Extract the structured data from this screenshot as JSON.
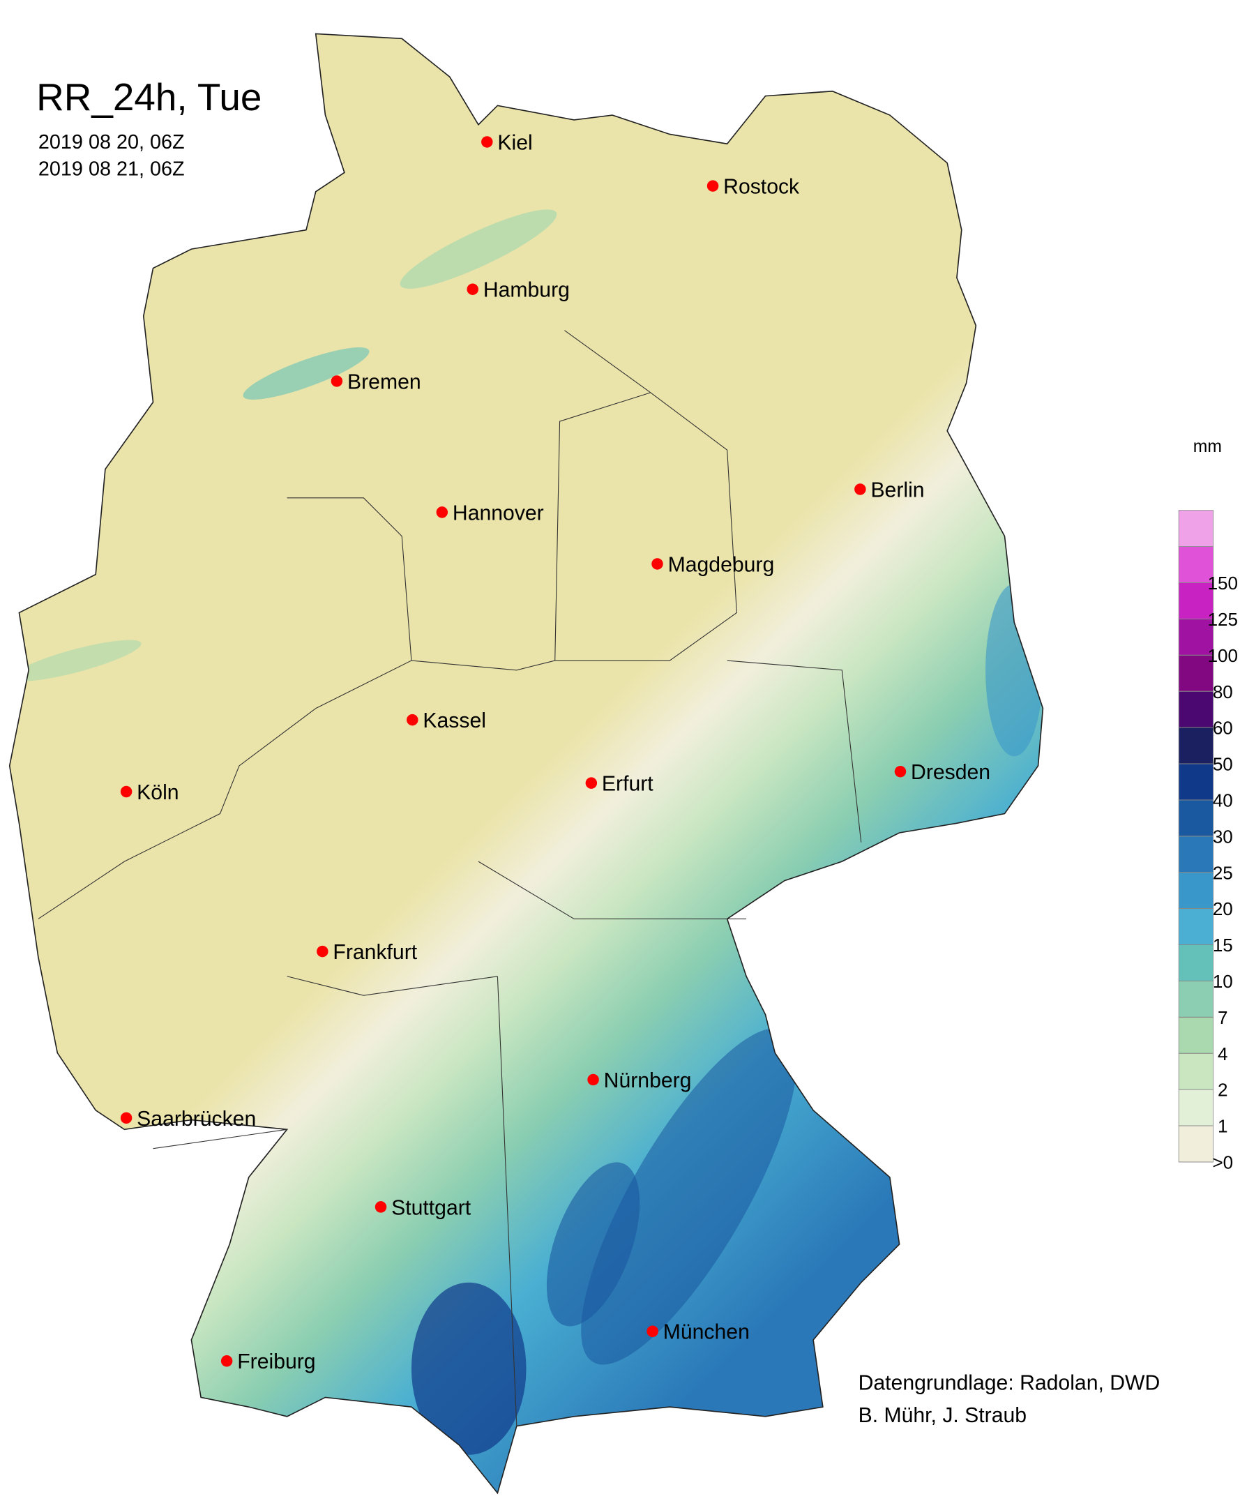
{
  "title": "RR_24h, Tue",
  "period": [
    "2019 08 20, 06Z",
    "2019 08 21, 06Z"
  ],
  "cities": [
    "Kiel",
    "Rostock",
    "Hamburg",
    "Bremen",
    "Berlin",
    "Hannover",
    "Magdeburg",
    "Kassel",
    "Köln",
    "Dresden",
    "Erfurt",
    "Frankfurt",
    "Nürnberg",
    "Saarbrücken",
    "Stuttgart",
    "München",
    "Freiburg"
  ],
  "legend": {
    "unit": "mm",
    "ticks": [
      {
        "value": 0,
        "label": ">0"
      },
      1,
      2,
      4,
      7,
      10,
      15,
      20,
      25,
      30,
      40,
      50,
      60,
      80,
      100,
      125,
      150
    ],
    "colors": [
      "#f1efdc",
      "#e1f0d6",
      "#c9e6c1",
      "#aad9af",
      "#8bceb1",
      "#63c1b9",
      "#4aafd2",
      "#3a97c9",
      "#2a78b8",
      "#1a58a0",
      "#10398a",
      "#1b2060",
      "#4a0870",
      "#810880",
      "#a012a2",
      "#c822c2",
      "#e052d8",
      "#f0a2e8"
    ]
  },
  "credits": [
    "Datengrundlage: Radolan, DWD",
    "B. Mühr, J. Straub"
  ]
}
